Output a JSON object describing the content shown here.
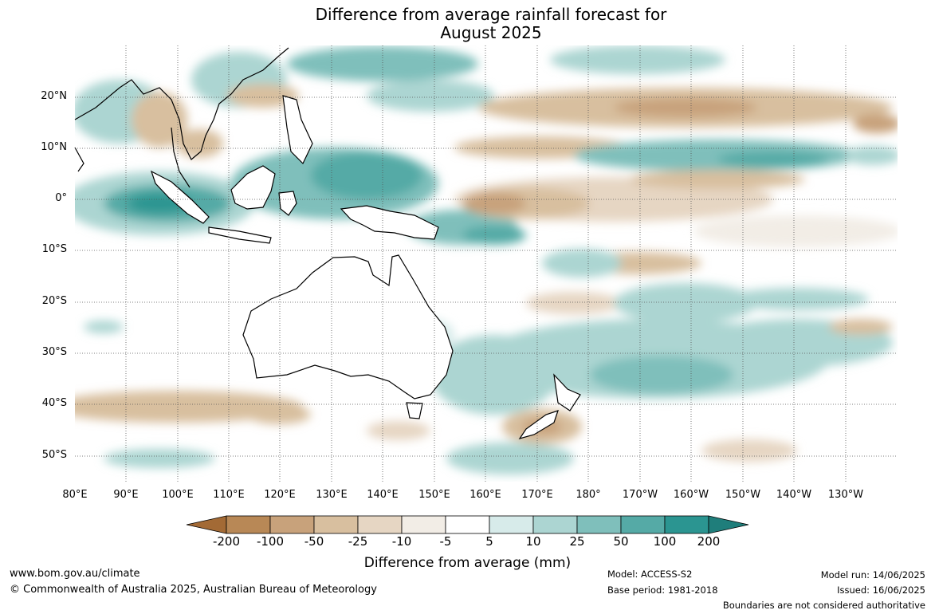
{
  "title_line1": "Difference from average rainfall forecast for",
  "title_line2": "August 2025",
  "latitude_labels": [
    "20°N",
    "10°N",
    "0°",
    "10°S",
    "20°S",
    "30°S",
    "40°S",
    "50°S"
  ],
  "longitude_labels": [
    "80°E",
    "90°E",
    "100°E",
    "110°E",
    "120°E",
    "130°E",
    "140°E",
    "150°E",
    "160°E",
    "170°E",
    "180°",
    "170°W",
    "160°W",
    "150°W",
    "140°W",
    "130°W"
  ],
  "legend": {
    "title": "Difference from average (mm)",
    "labels": [
      "-200",
      "-100",
      "-50",
      "-25",
      "-10",
      "-5",
      "5",
      "10",
      "25",
      "50",
      "100",
      "200"
    ],
    "colors": [
      "#a36a35",
      "#b88856",
      "#c8a27b",
      "#d8bf9f",
      "#e6d6c3",
      "#f2ede6",
      "#ffffff",
      "#d7ebea",
      "#acd5d2",
      "#7fbfbb",
      "#55aaa6",
      "#2b9591",
      "#1f7e7b"
    ]
  },
  "footer": {
    "website": "www.bom.gov.au/climate",
    "copyright": "© Commonwealth of Australia 2025, Australian Bureau of Meteorology",
    "model": "Model: ACCESS-S2",
    "base_period": "Base period: 1981-2018",
    "model_run": "Model run: 14/06/2025",
    "issued": "Issued: 16/06/2025",
    "disclaimer": "Boundaries are not considered authoritative"
  }
}
